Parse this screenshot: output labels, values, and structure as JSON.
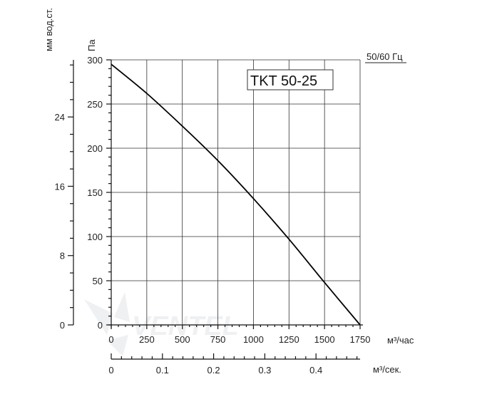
{
  "chart_data": {
    "type": "line",
    "title": "TKT 50-25",
    "frequency_label": "50/60 Гц",
    "xlabel_primary": "м³/час",
    "xlabel_secondary": "м³/сек.",
    "ylabel_primary": "Па",
    "ylabel_secondary": "мм вод.ст.",
    "xlim": [
      0,
      1750
    ],
    "ylim": [
      0,
      300
    ],
    "x_ticks": [
      0,
      250,
      500,
      750,
      1000,
      1250,
      1500,
      1750
    ],
    "y_ticks": [
      0,
      50,
      100,
      150,
      200,
      250,
      300
    ],
    "x_ticks_secondary": [
      0,
      0.1,
      0.2,
      0.3,
      0.4
    ],
    "x_ticks_secondary_labels": [
      "0",
      "0.1",
      "0.2",
      "0.3",
      "0.4"
    ],
    "y_ticks_secondary": [
      0,
      8,
      16,
      24
    ],
    "grid": true,
    "series": [
      {
        "name": "TKT 50-25",
        "x": [
          0,
          250,
          500,
          750,
          1000,
          1250,
          1500,
          1750
        ],
        "y": [
          295,
          262,
          225,
          186,
          143,
          97,
          48,
          0
        ]
      }
    ]
  },
  "watermark": "VENTEL"
}
